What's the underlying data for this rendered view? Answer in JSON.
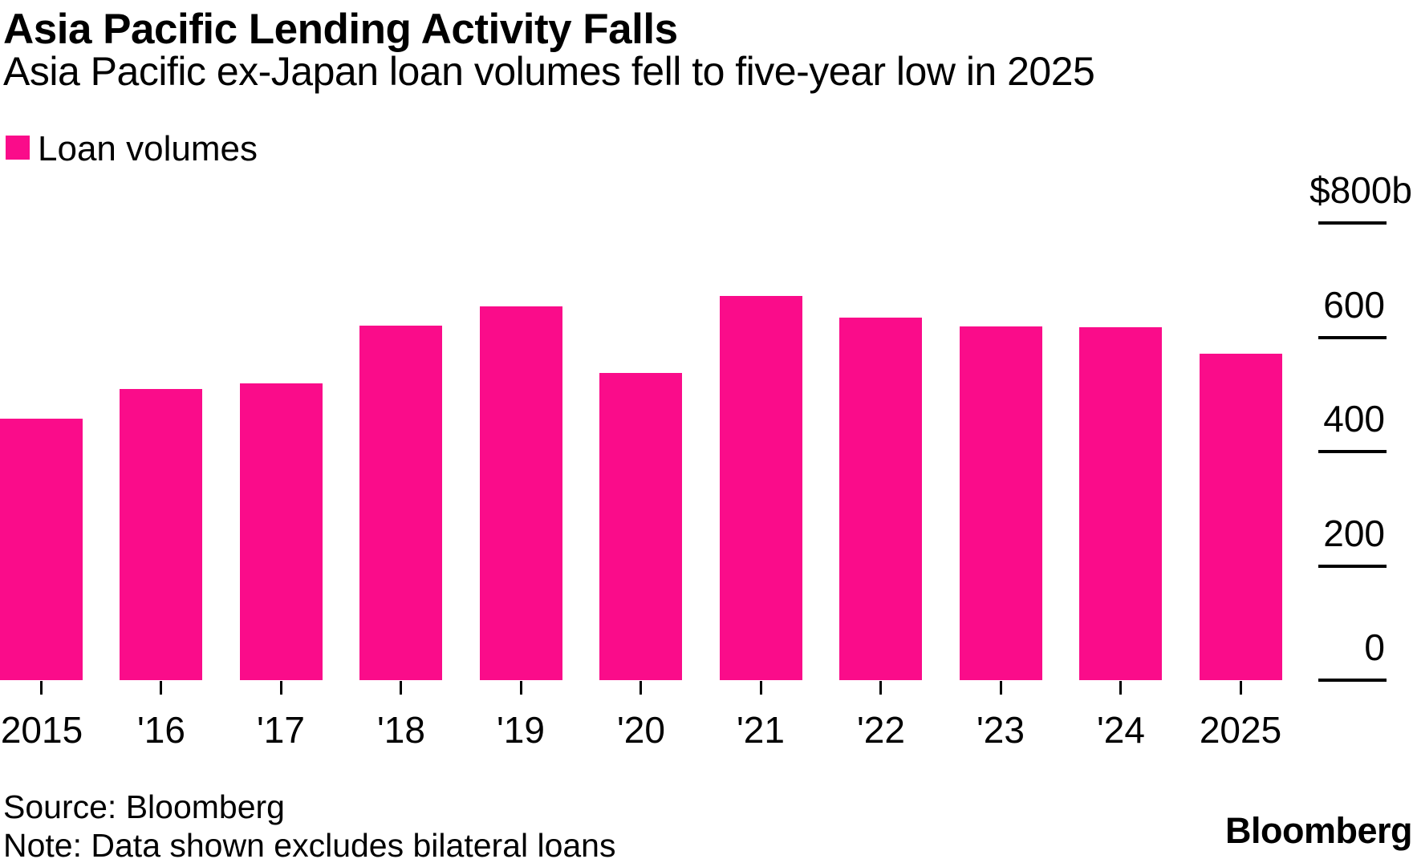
{
  "header": {
    "title": "Asia Pacific Lending Activity Falls",
    "subtitle": "Asia Pacific ex-Japan loan volumes fell to five-year low in 2025"
  },
  "legend": {
    "label": "Loan volumes",
    "swatch_color": "#FA0C8A"
  },
  "chart_data": {
    "type": "bar",
    "title": "Asia Pacific Lending Activity Falls",
    "subtitle": "Asia Pacific ex-Japan loan volumes fell to five-year low in 2025",
    "series_name": "Loan volumes",
    "unit": "USD billions",
    "bar_color": "#FA0C8A",
    "categories": [
      "2015",
      "'16",
      "'17",
      "'18",
      "'19",
      "'20",
      "'21",
      "'22",
      "'23",
      "'24",
      "2025"
    ],
    "values": [
      458,
      510,
      519,
      620,
      654,
      538,
      672,
      634,
      619,
      618,
      571
    ],
    "ylim": [
      0,
      800
    ],
    "grid": false,
    "legend_position": "top-left",
    "y_axis": {
      "side": "right",
      "tick_values": [
        800,
        600,
        400,
        200,
        0
      ],
      "tick_labels": [
        "$800b",
        "600",
        "400",
        "200",
        "0"
      ]
    }
  },
  "footer": {
    "source": "Source: Bloomberg",
    "note": "Note: Data shown excludes bilateral loans",
    "brand": "Bloomberg"
  }
}
